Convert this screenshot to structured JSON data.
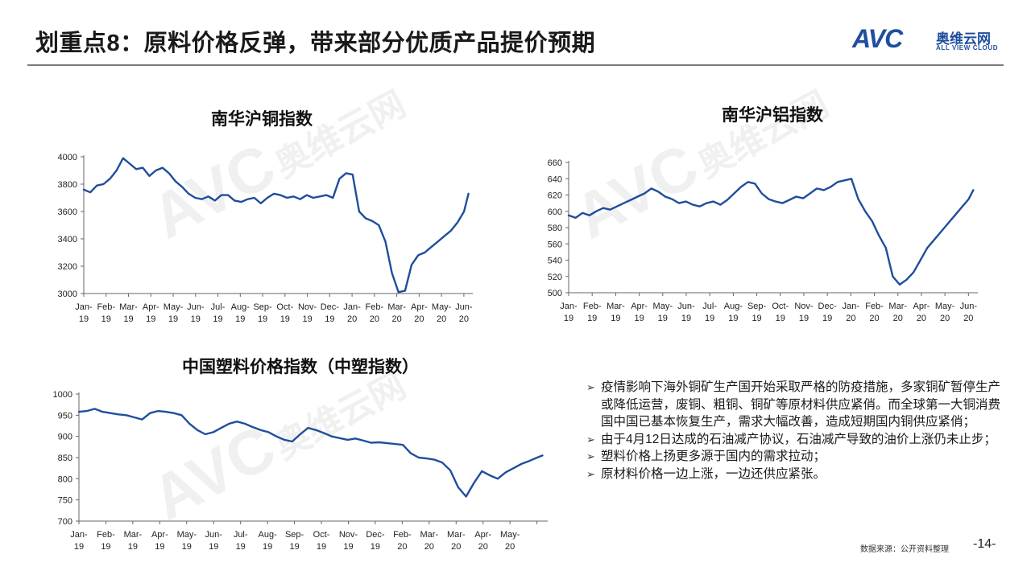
{
  "header": {
    "title": "划重点8：原料价格反弹，带来部分优质产品提价预期",
    "logo_mark": "AVC",
    "logo_cn": "奥维云网",
    "logo_en": "ALL VIEW CLOUD"
  },
  "watermark": {
    "mark": "AVC",
    "cn": "奥维云网",
    "en": "ALL VIEW CLOUD"
  },
  "colors": {
    "line": "#1f4e9c",
    "accent": "#1f4e9c",
    "rule": "#7a7a7a"
  },
  "notes": [
    "疫情影响下海外铜矿生产国开始采取严格的防疫措施，多家铜矿暂停生产或降低运营，废铜、粗铜、铜矿等原材料供应紧俏。而全球第一大铜消费国中国已基本恢复生产，需求大幅改善，造成短期国内铜供应紧俏；",
    "由于4月12日达成的石油减产协议，石油减产导致的油价上涨仍未止步；",
    "塑料价格上扬更多源于国内的需求拉动；",
    "原材料价格一边上涨，一边还供应紧张。"
  ],
  "source": "数据来源：公开资料整理",
  "page_number": "-14-",
  "chart_data": [
    {
      "id": "copper",
      "type": "line",
      "title": "南华沪铜指数",
      "ylim": [
        3000,
        4000
      ],
      "yticks": [
        3000,
        3200,
        3400,
        3600,
        3800,
        4000
      ],
      "xlim": [
        0,
        17.8
      ],
      "xtick_labels": [
        [
          "Jan-",
          "19"
        ],
        [
          "Feb-",
          "19"
        ],
        [
          "Mar-",
          "19"
        ],
        [
          "Apr-",
          "19"
        ],
        [
          "May-",
          "19"
        ],
        [
          "Jun-",
          "19"
        ],
        [
          "Jul-",
          "19"
        ],
        [
          "Aug-",
          "19"
        ],
        [
          "Sep-",
          "19"
        ],
        [
          "Oct-",
          "19"
        ],
        [
          "Nov-",
          "19"
        ],
        [
          "Dec-",
          "19"
        ],
        [
          "Jan-",
          "20"
        ],
        [
          "Feb-",
          "20"
        ],
        [
          "Mar-",
          "20"
        ],
        [
          "Apr-",
          "20"
        ],
        [
          "May-",
          "20"
        ],
        [
          "Jun-",
          "20"
        ]
      ],
      "grid": false,
      "series": [
        {
          "x": [
            0,
            0.3,
            0.6,
            0.9,
            1.2,
            1.5,
            1.8,
            2.1,
            2.4,
            2.7,
            3.0,
            3.3,
            3.6,
            3.9,
            4.2,
            4.5,
            4.8,
            5.1,
            5.4,
            5.7,
            6.0,
            6.3,
            6.6,
            6.9,
            7.2,
            7.5,
            7.8,
            8.1,
            8.4,
            8.7,
            9.0,
            9.3,
            9.6,
            9.9,
            10.2,
            10.5,
            10.8,
            11.1,
            11.4,
            11.7,
            12.0,
            12.3,
            12.6,
            12.9,
            13.2,
            13.5,
            13.8,
            14.1,
            14.4,
            14.7,
            15.0,
            15.3,
            15.6,
            15.9,
            16.2,
            16.5,
            16.8,
            17.1,
            17.4,
            17.6
          ],
          "y": [
            3760,
            3740,
            3790,
            3800,
            3840,
            3900,
            3990,
            3950,
            3910,
            3920,
            3860,
            3900,
            3920,
            3880,
            3820,
            3780,
            3730,
            3700,
            3690,
            3710,
            3680,
            3720,
            3720,
            3680,
            3670,
            3690,
            3700,
            3660,
            3700,
            3730,
            3720,
            3700,
            3710,
            3690,
            3720,
            3700,
            3710,
            3720,
            3700,
            3840,
            3880,
            3870,
            3600,
            3550,
            3530,
            3500,
            3380,
            3150,
            3010,
            3020,
            3210,
            3280,
            3300,
            3340,
            3380,
            3420,
            3460,
            3520,
            3600,
            3730
          ]
        }
      ]
    },
    {
      "id": "aluminum",
      "type": "line",
      "title": "南华沪铝指数",
      "ylim": [
        500,
        660
      ],
      "yticks": [
        500,
        520,
        540,
        560,
        580,
        600,
        620,
        640,
        660
      ],
      "xlim": [
        0,
        17.8
      ],
      "xtick_labels": [
        [
          "Jan-",
          "19"
        ],
        [
          "Feb-",
          "19"
        ],
        [
          "Mar-",
          "19"
        ],
        [
          "Apr-",
          "19"
        ],
        [
          "May-",
          "19"
        ],
        [
          "Jun-",
          "19"
        ],
        [
          "Jul-",
          "19"
        ],
        [
          "Aug-",
          "19"
        ],
        [
          "Sep-",
          "19"
        ],
        [
          "Oct-",
          "19"
        ],
        [
          "Nov-",
          "19"
        ],
        [
          "Dec-",
          "19"
        ],
        [
          "Jan-",
          "20"
        ],
        [
          "Feb-",
          "20"
        ],
        [
          "Mar-",
          "20"
        ],
        [
          "Apr-",
          "20"
        ],
        [
          "May-",
          "20"
        ],
        [
          "Jun-",
          "20"
        ]
      ],
      "grid": false,
      "series": [
        {
          "x": [
            0,
            0.3,
            0.6,
            0.9,
            1.2,
            1.5,
            1.8,
            2.1,
            2.4,
            2.7,
            3.0,
            3.3,
            3.6,
            3.9,
            4.2,
            4.5,
            4.8,
            5.1,
            5.4,
            5.7,
            6.0,
            6.3,
            6.6,
            6.9,
            7.2,
            7.5,
            7.8,
            8.1,
            8.4,
            8.7,
            9.0,
            9.3,
            9.6,
            9.9,
            10.2,
            10.5,
            10.8,
            11.1,
            11.4,
            11.7,
            12.0,
            12.3,
            12.6,
            12.9,
            13.2,
            13.5,
            13.8,
            14.1,
            14.4,
            14.7,
            15.0,
            15.3,
            15.6,
            15.9,
            16.2,
            16.5,
            16.8,
            17.1,
            17.4,
            17.6
          ],
          "y": [
            595,
            592,
            598,
            595,
            600,
            604,
            602,
            606,
            610,
            614,
            618,
            622,
            628,
            624,
            618,
            615,
            610,
            612,
            608,
            606,
            610,
            612,
            608,
            614,
            622,
            630,
            636,
            634,
            622,
            615,
            612,
            610,
            614,
            618,
            616,
            622,
            628,
            626,
            630,
            636,
            638,
            640,
            615,
            600,
            588,
            570,
            555,
            520,
            510,
            516,
            525,
            540,
            555,
            565,
            575,
            585,
            595,
            605,
            615,
            626
          ]
        }
      ]
    },
    {
      "id": "plastic",
      "type": "line",
      "title": "中国塑料价格指数（中塑指数）",
      "ylim": [
        700,
        1000
      ],
      "yticks": [
        700,
        750,
        800,
        850,
        900,
        950,
        1000
      ],
      "xlim": [
        0,
        17.8
      ],
      "xtick_labels": [
        [
          "Jan-",
          "19"
        ],
        [
          "Feb-",
          "19"
        ],
        [
          "Mar-",
          "19"
        ],
        [
          "Apr-",
          "19"
        ],
        [
          "May-",
          "19"
        ],
        [
          "Jun-",
          "19"
        ],
        [
          "Jul-",
          "19"
        ],
        [
          "Aug-",
          "19"
        ],
        [
          "Sep-",
          "19"
        ],
        [
          "Oct-",
          "19"
        ],
        [
          "Nov-",
          "19"
        ],
        [
          "Dec-",
          "19"
        ],
        [
          "Feb-",
          "20"
        ],
        [
          "Mar-",
          "20"
        ],
        [
          "Mar-",
          "20"
        ],
        [
          "Apr-",
          "20"
        ],
        [
          "May-",
          "20"
        ],
        [
          "",
          ""
        ]
      ],
      "grid": false,
      "series": [
        {
          "x": [
            0,
            0.3,
            0.6,
            0.9,
            1.2,
            1.5,
            1.8,
            2.1,
            2.4,
            2.7,
            3.0,
            3.3,
            3.6,
            3.9,
            4.2,
            4.5,
            4.8,
            5.1,
            5.4,
            5.7,
            6.0,
            6.3,
            6.6,
            6.9,
            7.2,
            7.5,
            7.8,
            8.1,
            8.4,
            8.7,
            9.0,
            9.3,
            9.6,
            9.9,
            10.2,
            10.5,
            10.8,
            11.1,
            11.4,
            11.7,
            12.0,
            12.3,
            12.6,
            12.9,
            13.2,
            13.5,
            13.8,
            14.1,
            14.4,
            14.7,
            15.0,
            15.3,
            15.6,
            15.9,
            16.2,
            16.5,
            16.8,
            17.1,
            17.4,
            17.6
          ],
          "y": [
            958,
            960,
            965,
            958,
            955,
            952,
            950,
            945,
            940,
            955,
            960,
            958,
            955,
            950,
            930,
            915,
            905,
            910,
            920,
            930,
            935,
            930,
            922,
            915,
            910,
            900,
            892,
            888,
            905,
            920,
            915,
            908,
            900,
            896,
            892,
            895,
            890,
            885,
            886,
            884,
            882,
            880,
            860,
            850,
            848,
            845,
            838,
            820,
            780,
            758,
            790,
            818,
            808,
            800,
            815,
            825,
            835,
            842,
            850,
            855
          ]
        }
      ]
    }
  ]
}
